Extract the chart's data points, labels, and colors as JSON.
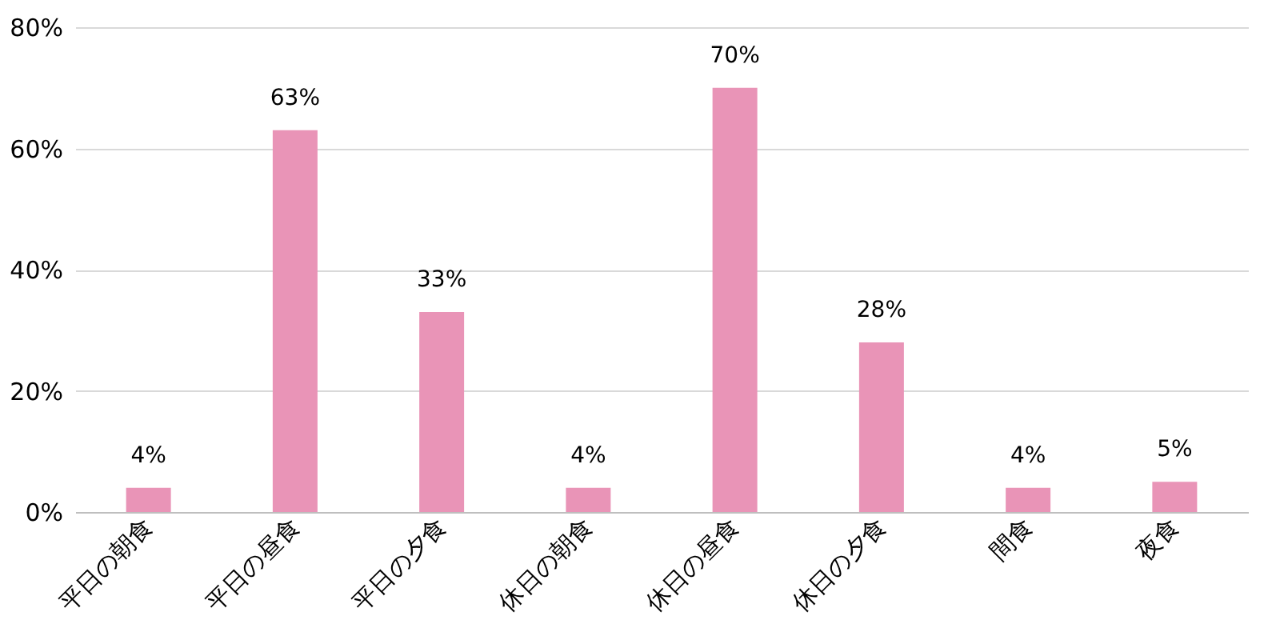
{
  "chart_data": {
    "type": "bar",
    "categories": [
      "平日の朝食",
      "平日の昼食",
      "平日の夕食",
      "休日の朝食",
      "休日の昼食",
      "休日の夕食",
      "間食",
      "夜食"
    ],
    "values": [
      4,
      63,
      33,
      4,
      70,
      28,
      4,
      5
    ],
    "value_labels": [
      "4%",
      "63%",
      "33%",
      "4%",
      "70%",
      "28%",
      "4%",
      "5%"
    ],
    "color": "#e994b7",
    "ylim": [
      0,
      80
    ],
    "yticks": [
      {
        "value": 0,
        "label": "0%"
      },
      {
        "value": 20,
        "label": "20%"
      },
      {
        "value": 40,
        "label": "40%"
      },
      {
        "value": 60,
        "label": "60%"
      },
      {
        "value": 80,
        "label": "80%"
      }
    ],
    "grid": "y"
  }
}
